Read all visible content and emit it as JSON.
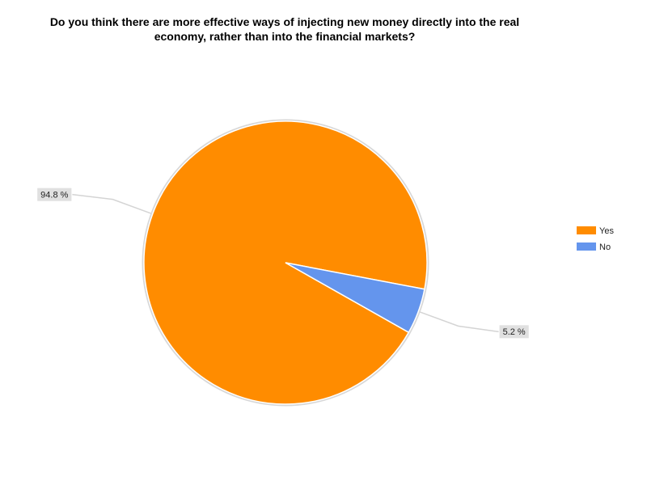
{
  "chart_data": {
    "type": "pie",
    "title": "Do you think there are more effective ways of injecting new money directly into the real economy, rather than into the financial markets?",
    "categories": [
      "Yes",
      "No"
    ],
    "values": [
      94.8,
      5.2
    ],
    "value_labels": [
      "94.8 %",
      "5.2 %"
    ],
    "colors": [
      "#ff8c00",
      "#6495ed"
    ],
    "legend": "right"
  }
}
